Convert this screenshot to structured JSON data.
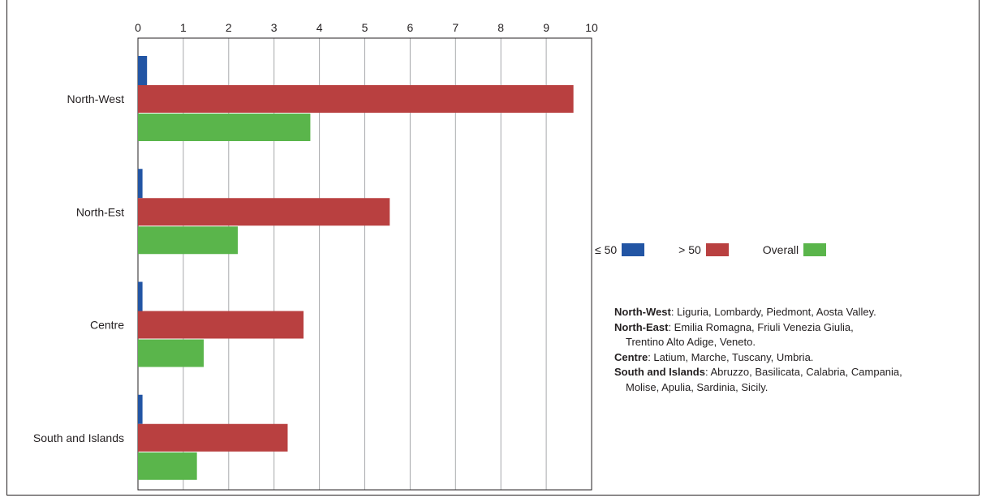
{
  "chart_data": {
    "type": "bar",
    "orientation": "horizontal",
    "categories": [
      "North-West",
      "North-Est",
      "Centre",
      "South and Islands"
    ],
    "series": [
      {
        "name": "≤ 50",
        "color": "#2255a4",
        "values": [
          0.2,
          0.1,
          0.1,
          0.1
        ]
      },
      {
        "name": "> 50",
        "color": "#b94040",
        "values": [
          9.6,
          5.55,
          3.65,
          3.3
        ]
      },
      {
        "name": "Overall",
        "color": "#5ab54b",
        "values": [
          3.8,
          2.2,
          1.45,
          1.3
        ]
      }
    ],
    "xticks": [
      "0",
      "1",
      "2",
      "3",
      "4",
      "5",
      "6",
      "7",
      "8",
      "9",
      "10"
    ],
    "xlim": [
      0,
      10
    ],
    "xaxis_position": "top",
    "grid": true,
    "legend_position": "right"
  },
  "notes": [
    {
      "key": "North-West",
      "text": ": Liguria, Lombardy, Piedmont, Aosta Valley.",
      "cont": ""
    },
    {
      "key": "North-East",
      "text": ": Emilia Romagna, Friuli Venezia Giulia,",
      "cont": "Trentino Alto Adige, Veneto."
    },
    {
      "key": "Centre",
      "text": ": Latium, Marche, Tuscany, Umbria.",
      "cont": ""
    },
    {
      "key": "South and Islands",
      "text": ": Abruzzo, Basilicata, Calabria, Campania,",
      "cont": "Molise, Apulia, Sardinia, Sicily."
    }
  ]
}
